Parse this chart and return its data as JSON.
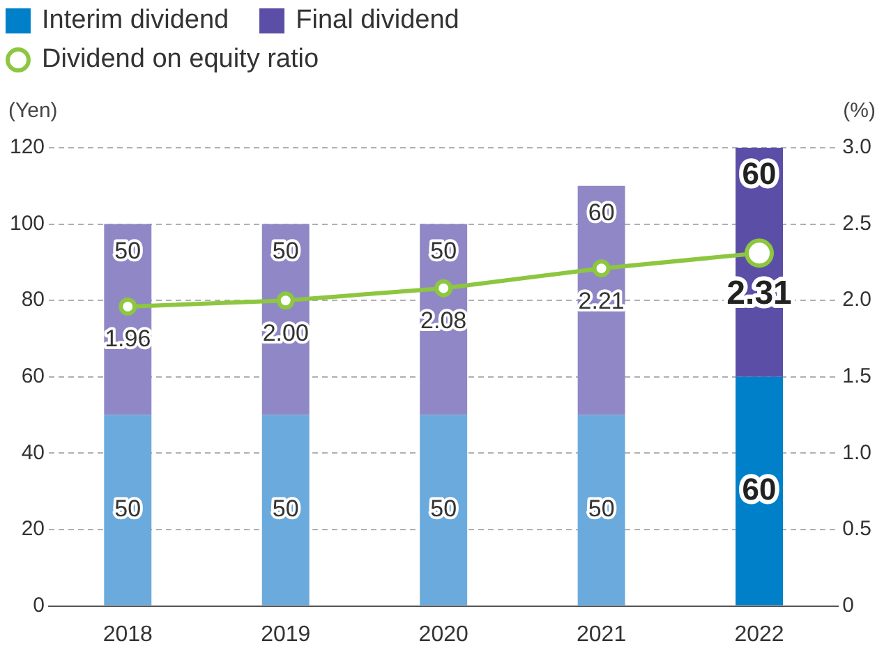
{
  "chart_data": {
    "type": "bar",
    "stacked": true,
    "categories": [
      "2018",
      "2019",
      "2020",
      "2021",
      "2022"
    ],
    "series": [
      {
        "name": "Interim dividend",
        "color": "#0080c8",
        "colors": [
          "#6aaadc",
          "#6aaadc",
          "#6aaadc",
          "#6aaadc",
          "#0080c8"
        ],
        "values": [
          50,
          50,
          50,
          50,
          60
        ]
      },
      {
        "name": "Final dividend",
        "color": "#5b4ea6",
        "colors": [
          "#9088c6",
          "#9088c6",
          "#9088c6",
          "#9088c6",
          "#5b4ea6"
        ],
        "values": [
          50,
          50,
          50,
          60,
          60
        ]
      },
      {
        "name": "Dividend on equity ratio",
        "type": "line",
        "axis": "y2",
        "color": "#8dc63f",
        "marker": "circle",
        "values": [
          1.96,
          2.0,
          2.08,
          2.21,
          2.31
        ],
        "value_labels": [
          "1.96",
          "2.00",
          "2.08",
          "2.21",
          "2.31"
        ]
      }
    ],
    "ylabel": "(Yen)",
    "y2label": "(%)",
    "ylim": [
      0,
      120
    ],
    "yticks": [
      0,
      20,
      40,
      60,
      80,
      100,
      120
    ],
    "y2lim": [
      0,
      3
    ],
    "y2ticks": [
      0,
      {
        "value": 0.5,
        "label": "0.5"
      },
      {
        "value": 1,
        "label": "1.0"
      },
      {
        "value": 1.5,
        "label": "1.5"
      },
      {
        "value": 2,
        "label": "2.0"
      },
      {
        "value": 2.5,
        "label": "2.5"
      },
      {
        "value": 3,
        "label": "3.0"
      }
    ],
    "grid": "y",
    "legend": "top left",
    "data_labels": true
  }
}
